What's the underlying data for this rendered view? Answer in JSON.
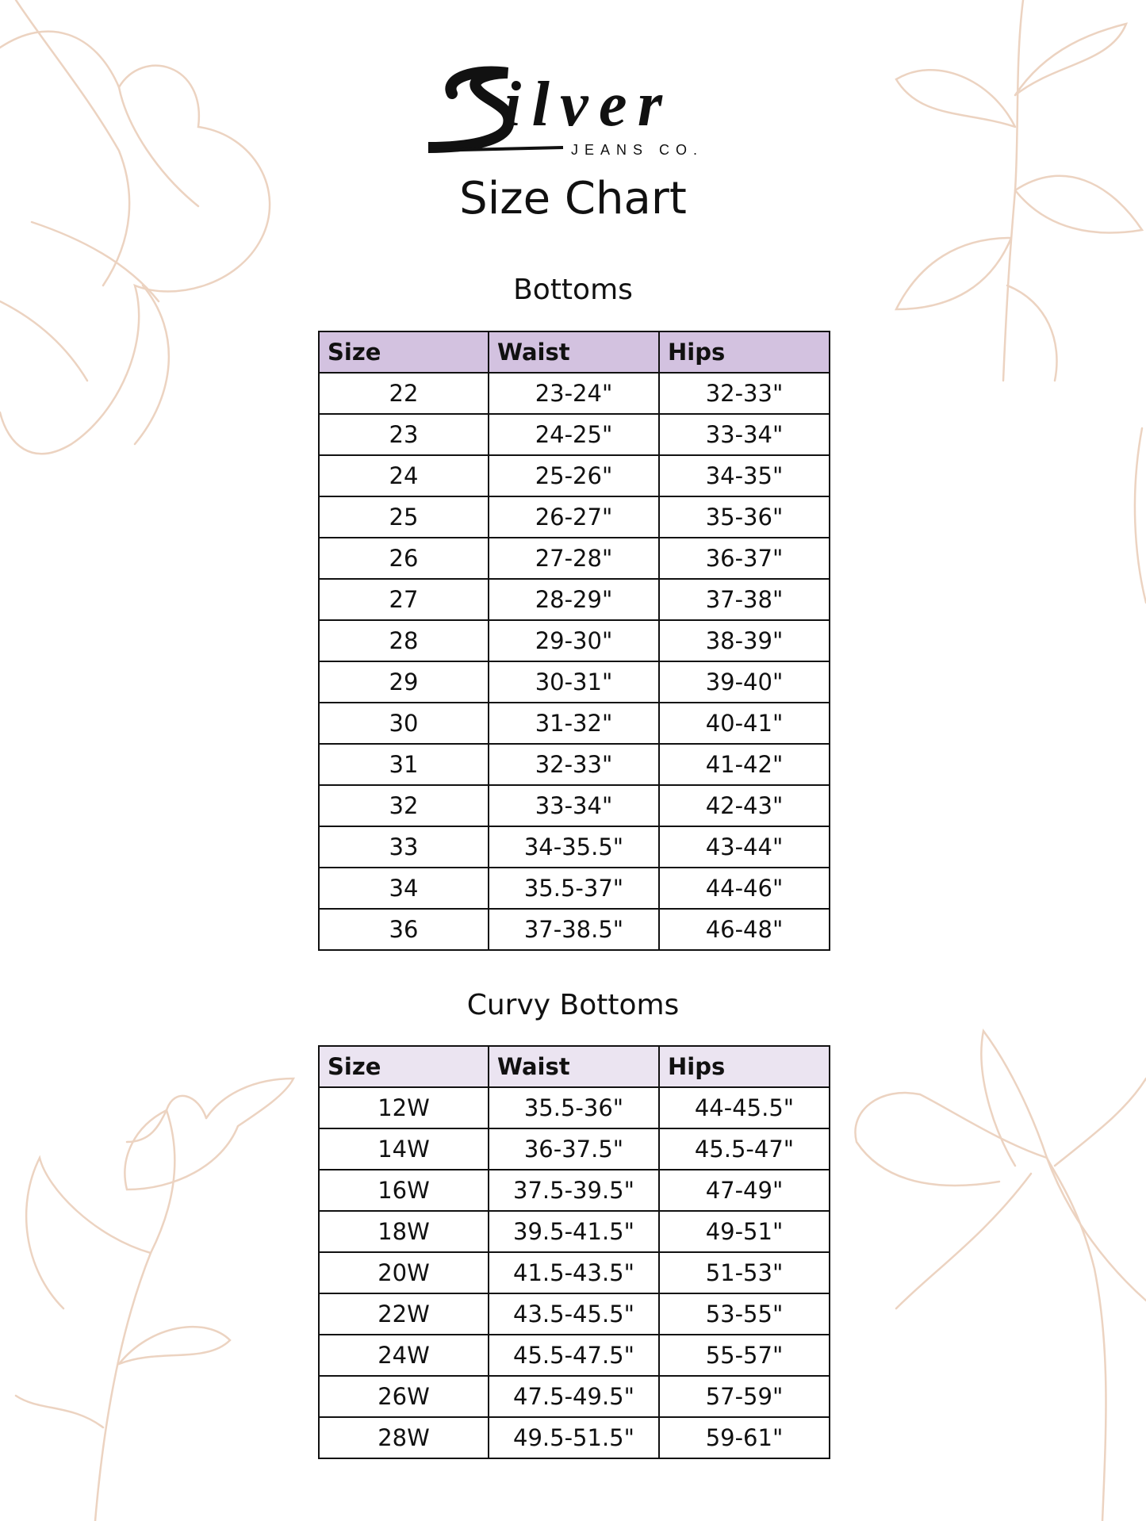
{
  "brand": {
    "logo_text": "Silver",
    "logo_subtext": "JEANS CO."
  },
  "title": "Size Chart",
  "colors": {
    "header_bottoms": "#d3c2e0",
    "header_curvy": "#ebe4f1",
    "floral": "#ecd3c1"
  },
  "bottoms": {
    "title": "Bottoms",
    "columns": [
      "Size",
      "Waist",
      "Hips"
    ],
    "rows": [
      [
        "22",
        "23-24\"",
        "32-33\""
      ],
      [
        "23",
        "24-25\"",
        "33-34\""
      ],
      [
        "24",
        "25-26\"",
        "34-35\""
      ],
      [
        "25",
        "26-27\"",
        "35-36\""
      ],
      [
        "26",
        "27-28\"",
        "36-37\""
      ],
      [
        "27",
        "28-29\"",
        "37-38\""
      ],
      [
        "28",
        "29-30\"",
        "38-39\""
      ],
      [
        "29",
        "30-31\"",
        "39-40\""
      ],
      [
        "30",
        "31-32\"",
        "40-41\""
      ],
      [
        "31",
        "32-33\"",
        "41-42\""
      ],
      [
        "32",
        "33-34\"",
        "42-43\""
      ],
      [
        "33",
        "34-35.5\"",
        "43-44\""
      ],
      [
        "34",
        "35.5-37\"",
        "44-46\""
      ],
      [
        "36",
        "37-38.5\"",
        "46-48\""
      ]
    ]
  },
  "curvy": {
    "title": "Curvy Bottoms",
    "columns": [
      "Size",
      "Waist",
      "Hips"
    ],
    "rows": [
      [
        "12W",
        "35.5-36\"",
        "44-45.5\""
      ],
      [
        "14W",
        "36-37.5\"",
        "45.5-47\""
      ],
      [
        "16W",
        "37.5-39.5\"",
        "47-49\""
      ],
      [
        "18W",
        "39.5-41.5\"",
        "49-51\""
      ],
      [
        "20W",
        "41.5-43.5\"",
        "51-53\""
      ],
      [
        "22W",
        "43.5-45.5\"",
        "53-55\""
      ],
      [
        "24W",
        "45.5-47.5\"",
        "55-57\""
      ],
      [
        "26W",
        "47.5-49.5\"",
        "57-59\""
      ],
      [
        "28W",
        "49.5-51.5\"",
        "59-61\""
      ]
    ]
  }
}
